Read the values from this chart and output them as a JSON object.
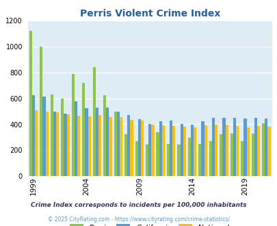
{
  "title": "Perris Violent Crime Index",
  "years": [
    1999,
    2000,
    2001,
    2002,
    2003,
    2004,
    2005,
    2006,
    2007,
    2008,
    2009,
    2010,
    2011,
    2012,
    2013,
    2014,
    2015,
    2016,
    2017,
    2018,
    2019,
    2020,
    2021
  ],
  "perris": [
    1120,
    1000,
    630,
    595,
    785,
    720,
    840,
    625,
    500,
    325,
    270,
    245,
    340,
    250,
    245,
    295,
    250,
    270,
    325,
    330,
    270,
    330,
    410
  ],
  "california": [
    625,
    615,
    500,
    480,
    575,
    525,
    530,
    530,
    500,
    470,
    440,
    405,
    425,
    430,
    400,
    395,
    425,
    450,
    450,
    450,
    445,
    450,
    445
  ],
  "national": [
    510,
    500,
    490,
    475,
    465,
    460,
    470,
    455,
    455,
    435,
    430,
    395,
    390,
    385,
    380,
    375,
    390,
    395,
    395,
    385,
    375,
    385,
    380
  ],
  "perris_color": "#8dc63f",
  "california_color": "#5b9bd5",
  "national_color": "#ffc000",
  "plot_bg": "#deedf5",
  "title_color": "#2060a8",
  "subtitle": "Crime Index corresponds to incidents per 100,000 inhabitants",
  "subtitle_color": "#333366",
  "footer": "© 2025 CityRating.com - https://www.cityrating.com/crime-statistics/",
  "footer_color": "#6699cc",
  "tick_years": [
    1999,
    2004,
    2009,
    2014,
    2019
  ],
  "yticks": [
    0,
    200,
    400,
    600,
    800,
    1000,
    1200
  ],
  "ylim": [
    0,
    1200
  ],
  "bar_width": 0.27,
  "figsize": [
    4.06,
    3.3
  ],
  "dpi": 100
}
